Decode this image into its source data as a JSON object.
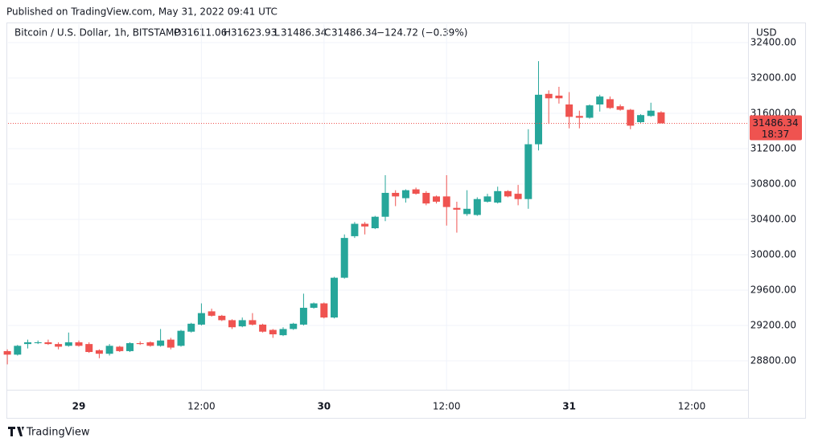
{
  "page": {
    "published": "Published on TradingView.com, May 31, 2022 09:41 UTC",
    "brand": "TradingView"
  },
  "chart_data": {
    "type": "candlestick",
    "title": "Bitcoin / U.S. Dollar, 1h, BITSTAMP",
    "ohlc_letters": [
      "O",
      "H",
      "L",
      "C"
    ],
    "change": "−124.72 (−0.39%)",
    "currency": "USD",
    "countdown": "18:37",
    "up_color": "#26a69a",
    "down_color": "#ef5350",
    "grid": true,
    "x": [
      -7,
      -6,
      -5,
      -4,
      -3,
      -2,
      -1,
      0,
      1,
      2,
      3,
      4,
      5,
      6,
      7,
      8,
      9,
      10,
      11,
      12,
      13,
      14,
      15,
      16,
      17,
      18,
      19,
      20,
      21,
      22,
      23,
      24,
      25,
      26,
      27,
      28,
      29,
      30,
      31,
      32,
      33,
      34,
      35,
      36,
      37,
      38,
      39,
      40,
      41,
      42,
      43,
      44,
      45,
      46,
      47,
      48,
      49,
      50,
      51,
      52,
      53,
      54,
      55,
      56,
      57
    ],
    "open": [
      28910,
      28870,
      28990,
      29000,
      29010,
      28990,
      28970,
      29010,
      28990,
      28920,
      28880,
      28960,
      28910,
      29000,
      29010,
      28970,
      29040,
      28970,
      29130,
      29210,
      29360,
      29310,
      29260,
      29190,
      29260,
      29210,
      29150,
      29090,
      29160,
      29210,
      29400,
      29450,
      29290,
      29740,
      30210,
      30350,
      30300,
      30430,
      30700,
      30640,
      30740,
      30700,
      30660,
      30660,
      30530,
      30460,
      30450,
      30600,
      30590,
      30720,
      30690,
      30630,
      31250,
      31820,
      31800,
      31700,
      31570,
      31550,
      31700,
      31760,
      31680,
      31640,
      31500,
      31570,
      31611.06
    ],
    "high": [
      28930,
      28980,
      29040,
      29030,
      29040,
      29010,
      29120,
      29030,
      29010,
      28930,
      28990,
      28970,
      29010,
      29020,
      29020,
      29160,
      29060,
      29150,
      29230,
      29450,
      29390,
      29320,
      29270,
      29290,
      29340,
      29220,
      29160,
      29180,
      29230,
      29560,
      29460,
      29460,
      29750,
      30230,
      30370,
      30370,
      30440,
      30900,
      30730,
      30740,
      30760,
      30720,
      30670,
      30900,
      30600,
      30730,
      30650,
      30690,
      30770,
      30730,
      30790,
      31420,
      32190,
      31860,
      31900,
      31840,
      31630,
      31700,
      31810,
      31790,
      31700,
      31650,
      31590,
      31720,
      31623.93
    ],
    "low": [
      28760,
      28860,
      28940,
      28990,
      28980,
      28930,
      28960,
      28960,
      28890,
      28830,
      28860,
      28900,
      28900,
      28980,
      28960,
      28960,
      28930,
      28960,
      29120,
      29200,
      29300,
      29250,
      29160,
      29180,
      29200,
      29120,
      29060,
      29080,
      29150,
      29200,
      29390,
      29280,
      29280,
      29730,
      30190,
      30230,
      30290,
      30380,
      30550,
      30590,
      30680,
      30560,
      30580,
      30330,
      30250,
      30440,
      30440,
      30590,
      30580,
      30650,
      30560,
      30520,
      31180,
      31480,
      31710,
      31430,
      31430,
      31540,
      31620,
      31650,
      31630,
      31420,
      31490,
      31560,
      31486.34
    ],
    "close": [
      28870,
      28970,
      29010,
      29010,
      28990,
      28960,
      29010,
      28970,
      28900,
      28880,
      28970,
      28910,
      29000,
      28990,
      28970,
      29030,
      28950,
      29140,
      29220,
      29340,
      29310,
      29260,
      29180,
      29260,
      29210,
      29130,
      29100,
      29160,
      29220,
      29400,
      29450,
      29290,
      29740,
      30190,
      30350,
      30320,
      30430,
      30700,
      30660,
      30730,
      30690,
      30580,
      30600,
      30540,
      30510,
      30520,
      30630,
      30660,
      30720,
      30660,
      30630,
      31250,
      31810,
      31770,
      31770,
      31560,
      31550,
      31690,
      31790,
      31660,
      31640,
      31460,
      31580,
      31630,
      31486.34
    ],
    "xlim": [
      -6.93,
      65.51
    ],
    "xticks": [
      {
        "value": 0,
        "label": "29"
      },
      {
        "value": 12,
        "label": "12:00"
      },
      {
        "value": 24,
        "label": "30"
      },
      {
        "value": 36,
        "label": "12:00"
      },
      {
        "value": 48,
        "label": "31"
      },
      {
        "value": 60,
        "label": "12:00"
      }
    ],
    "ylim": [
      28473,
      32609
    ],
    "yticks": [
      {
        "value": 28800,
        "label": "28800.00"
      },
      {
        "value": 29200,
        "label": "29200.00"
      },
      {
        "value": 29600,
        "label": "29600.00"
      },
      {
        "value": 30000,
        "label": "30000.00"
      },
      {
        "value": 30400,
        "label": "30400.00"
      },
      {
        "value": 30800,
        "label": "30800.00"
      },
      {
        "value": 31200,
        "label": "31200.00"
      },
      {
        "value": 31600,
        "label": "31600.00"
      },
      {
        "value": 32000,
        "label": "32000.00"
      },
      {
        "value": 32400,
        "label": "32400.00"
      }
    ]
  }
}
